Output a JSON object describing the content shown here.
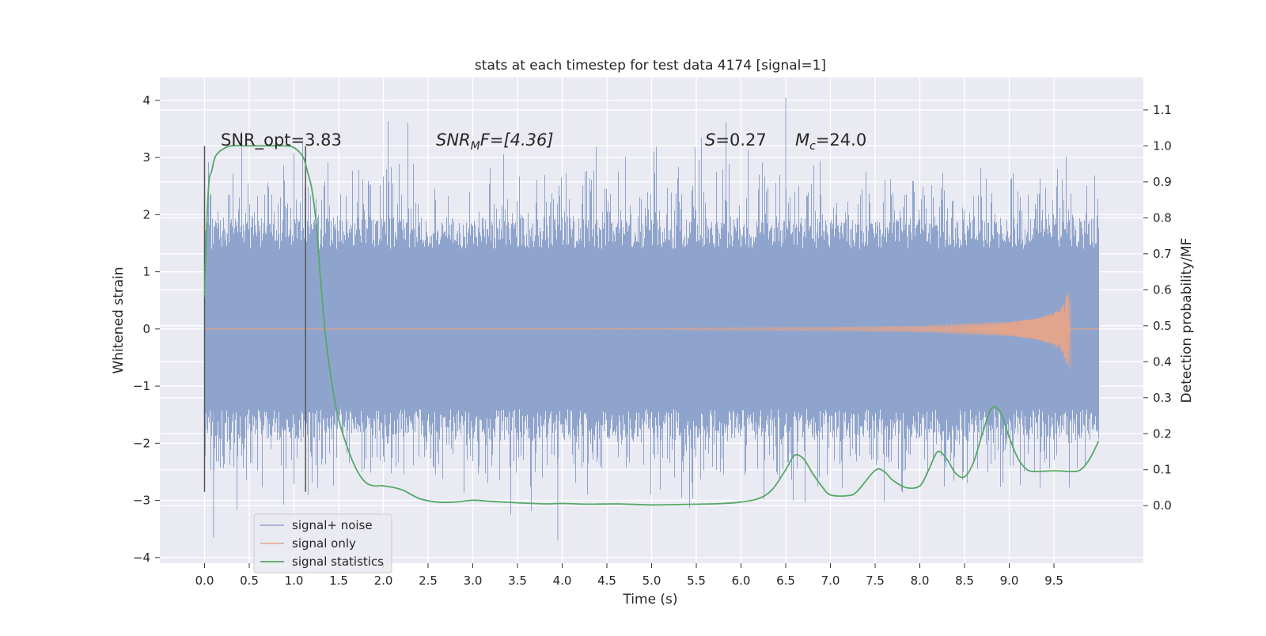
{
  "chart_data": {
    "type": "line",
    "title": "stats at each timestep for test data 4174 [signal=1]",
    "xlabel": "Time (s)",
    "ylabel": "Whitened strain",
    "ylabel_right": "Detection probability/MF",
    "xlim": [
      -0.5,
      10.5
    ],
    "ylim": [
      -4.1,
      4.4
    ],
    "ylim_right": [
      -0.16,
      1.19
    ],
    "x_ticks": [
      "0.0",
      "0.5",
      "1.0",
      "1.5",
      "2.0",
      "2.5",
      "3.0",
      "3.5",
      "4.0",
      "4.5",
      "5.0",
      "5.5",
      "6.0",
      "6.5",
      "7.0",
      "7.5",
      "8.0",
      "8.5",
      "9.0",
      "9.5"
    ],
    "y_ticks": [
      "4",
      "3",
      "2",
      "1",
      "0",
      "−1",
      "−2",
      "−3",
      "−4"
    ],
    "y_ticks_right": [
      "1.1",
      "1.0",
      "0.9",
      "0.8",
      "0.7",
      "0.6",
      "0.5",
      "0.4",
      "0.3",
      "0.2",
      "0.1",
      "0.0"
    ],
    "grid": true,
    "legend_position": "lower-left",
    "annotations": {
      "snr_opt": "SNR_opt=3.83",
      "snr_mf_prefix": "SNR",
      "snr_mf_sub": "M",
      "snr_mf_suffix": "F=[4.36]",
      "s_prefix": "S",
      "s_value": "=0.27",
      "mc_prefix": "M",
      "mc_sub": "c",
      "mc_value": "=24.0"
    },
    "window_markers_x": [
      0.0,
      1.13
    ],
    "window_markers_y": [
      -2.85,
      3.2
    ],
    "series": [
      {
        "name": "signal+ noise",
        "color": "#8fa4cc",
        "x_range": [
          0.0,
          10.0
        ],
        "band_center": 0.0,
        "band_core": 1.4,
        "peak_range": [
          -3.65,
          4.05
        ]
      },
      {
        "name": "signal only",
        "color": "#e1a48c",
        "x": [
          0.0,
          5.0,
          6.0,
          7.0,
          8.0,
          8.5,
          9.0,
          9.3,
          9.5,
          9.6,
          9.68
        ],
        "envelope": [
          0.01,
          0.01,
          0.02,
          0.03,
          0.05,
          0.08,
          0.12,
          0.18,
          0.28,
          0.42,
          0.75
        ]
      },
      {
        "name": "signal statistics",
        "color": "#55a868",
        "x": [
          0.0,
          0.02,
          0.05,
          0.08,
          0.12,
          0.2,
          0.3,
          0.5,
          0.7,
          0.9,
          1.0,
          1.1,
          1.15,
          1.2,
          1.25,
          1.3,
          1.35,
          1.4,
          1.45,
          1.5,
          1.6,
          1.7,
          1.8,
          1.9,
          2.0,
          2.2,
          2.4,
          2.6,
          2.8,
          3.0,
          3.2,
          3.5,
          3.8,
          4.0,
          4.3,
          4.6,
          5.0,
          5.5,
          5.8,
          6.0,
          6.2,
          6.35,
          6.5,
          6.6,
          6.7,
          6.8,
          6.9,
          7.0,
          7.2,
          7.3,
          7.5,
          7.6,
          7.7,
          7.85,
          8.0,
          8.1,
          8.2,
          8.3,
          8.4,
          8.5,
          8.6,
          8.7,
          8.8,
          8.9,
          9.0,
          9.1,
          9.2,
          9.3,
          9.5,
          9.7,
          9.8,
          9.9,
          10.0
        ],
        "y": [
          0.58,
          0.75,
          0.9,
          0.93,
          0.97,
          0.99,
          1.0,
          1.0,
          1.0,
          1.0,
          0.995,
          0.97,
          0.93,
          0.88,
          0.78,
          0.62,
          0.48,
          0.38,
          0.3,
          0.24,
          0.16,
          0.1,
          0.065,
          0.055,
          0.055,
          0.045,
          0.02,
          0.01,
          0.01,
          0.015,
          0.012,
          0.008,
          0.005,
          0.006,
          0.004,
          0.005,
          0.002,
          0.004,
          0.006,
          0.01,
          0.02,
          0.045,
          0.1,
          0.14,
          0.13,
          0.09,
          0.055,
          0.03,
          0.028,
          0.04,
          0.098,
          0.095,
          0.07,
          0.05,
          0.055,
          0.1,
          0.15,
          0.13,
          0.09,
          0.08,
          0.12,
          0.2,
          0.27,
          0.26,
          0.19,
          0.13,
          0.1,
          0.095,
          0.097,
          0.095,
          0.1,
          0.13,
          0.18
        ]
      }
    ]
  }
}
